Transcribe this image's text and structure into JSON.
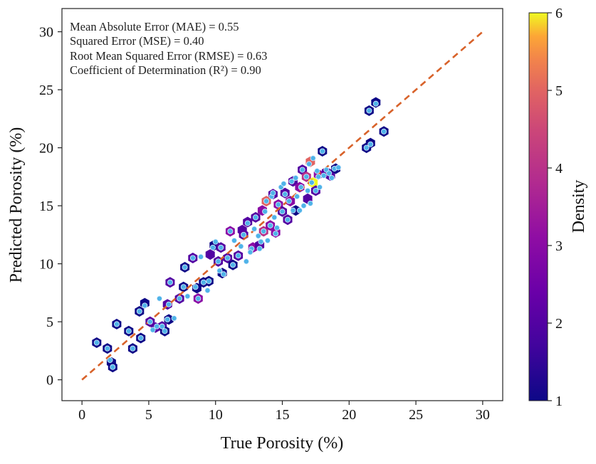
{
  "chart_data": {
    "type": "scatter",
    "title": "",
    "xlabel": "True Porosity (%)",
    "ylabel": "Predicted Porosity (%)",
    "xlim": [
      -1.5,
      31.5
    ],
    "ylim": [
      -1.8,
      32
    ],
    "xticks": [
      0,
      5,
      10,
      15,
      20,
      25,
      30
    ],
    "yticks": [
      0,
      5,
      10,
      15,
      20,
      25,
      30
    ],
    "grid": false,
    "reference_line": {
      "from": [
        0,
        0
      ],
      "to": [
        30,
        30
      ],
      "style": "dashed",
      "color": "#d8622a"
    },
    "metrics": [
      "Mean Absolute Error (MAE) = 0.55",
      "Squared Error (MSE) = 0.40",
      "Root Mean Squared Error (RMSE) = 0.63",
      "Coefficient of Determination (R²) = 0.90"
    ],
    "colorbar": {
      "label": "Density",
      "range": [
        1,
        6
      ],
      "ticks": [
        1,
        2,
        3,
        4,
        5,
        6
      ],
      "colormap": "plasma"
    },
    "point_color": "#4fb3e8",
    "points": [
      [
        1.1,
        3.2
      ],
      [
        1.9,
        2.7
      ],
      [
        2.1,
        1.7
      ],
      [
        2.3,
        1.1
      ],
      [
        2.6,
        4.8
      ],
      [
        3.5,
        4.2
      ],
      [
        3.8,
        2.7
      ],
      [
        4.4,
        3.6
      ],
      [
        4.3,
        5.9
      ],
      [
        4.7,
        6.4
      ],
      [
        5.1,
        5.0
      ],
      [
        5.3,
        4.3
      ],
      [
        5.6,
        4.6
      ],
      [
        5.8,
        7.0
      ],
      [
        6.0,
        4.6
      ],
      [
        6.2,
        4.2
      ],
      [
        6.4,
        5.2
      ],
      [
        6.5,
        6.5
      ],
      [
        6.6,
        8.4
      ],
      [
        6.9,
        5.3
      ],
      [
        7.3,
        7.0
      ],
      [
        7.6,
        8.0
      ],
      [
        7.7,
        9.7
      ],
      [
        7.9,
        7.2
      ],
      [
        8.3,
        10.5
      ],
      [
        8.5,
        8.0
      ],
      [
        8.7,
        7.0
      ],
      [
        8.9,
        10.6
      ],
      [
        9.1,
        8.4
      ],
      [
        9.5,
        8.5
      ],
      [
        9.4,
        7.7
      ],
      [
        9.8,
        11.4
      ],
      [
        10.0,
        11.9
      ],
      [
        10.2,
        10.2
      ],
      [
        10.3,
        9.4
      ],
      [
        10.6,
        9.1
      ],
      [
        10.4,
        11.4
      ],
      [
        10.9,
        10.5
      ],
      [
        11.1,
        12.8
      ],
      [
        11.3,
        9.9
      ],
      [
        11.4,
        12.0
      ],
      [
        11.7,
        10.7
      ],
      [
        11.9,
        11.5
      ],
      [
        12.1,
        12.5
      ],
      [
        12.3,
        10.2
      ],
      [
        12.4,
        13.5
      ],
      [
        12.7,
        11.3
      ],
      [
        12.9,
        13.0
      ],
      [
        13.0,
        14.0
      ],
      [
        13.2,
        12.4
      ],
      [
        13.3,
        11.3
      ],
      [
        13.4,
        11.9
      ],
      [
        13.6,
        12.8
      ],
      [
        13.7,
        14.5
      ],
      [
        13.8,
        15.4
      ],
      [
        13.9,
        12.0
      ],
      [
        14.1,
        13.3
      ],
      [
        14.2,
        15.8
      ],
      [
        14.4,
        14.0
      ],
      [
        14.5,
        12.6
      ],
      [
        14.6,
        13.1
      ],
      [
        14.7,
        15.1
      ],
      [
        14.9,
        16.6
      ],
      [
        15.0,
        14.5
      ],
      [
        15.2,
        16.0
      ],
      [
        15.4,
        13.8
      ],
      [
        15.5,
        15.4
      ],
      [
        15.7,
        17.1
      ],
      [
        15.8,
        14.6
      ],
      [
        16.0,
        17.4
      ],
      [
        16.1,
        15.8
      ],
      [
        16.3,
        14.6
      ],
      [
        16.4,
        16.6
      ],
      [
        16.5,
        18.1
      ],
      [
        16.6,
        15.0
      ],
      [
        16.8,
        17.5
      ],
      [
        16.9,
        16.3
      ],
      [
        17.0,
        18.6
      ],
      [
        17.1,
        15.2
      ],
      [
        17.2,
        17.0
      ],
      [
        17.3,
        19.1
      ],
      [
        17.5,
        16.3
      ],
      [
        17.6,
        18.0
      ],
      [
        17.7,
        17.5
      ],
      [
        17.8,
        16.6
      ],
      [
        18.0,
        19.7
      ],
      [
        18.1,
        17.6
      ],
      [
        18.3,
        18.1
      ],
      [
        18.5,
        17.8
      ],
      [
        18.7,
        17.4
      ],
      [
        18.9,
        18.2
      ],
      [
        19.2,
        18.3
      ],
      [
        21.3,
        20.0
      ],
      [
        21.6,
        20.3
      ],
      [
        21.5,
        23.2
      ],
      [
        22.0,
        23.8
      ],
      [
        22.6,
        21.4
      ],
      [
        15.1,
        16.9
      ],
      [
        14.3,
        16.1
      ],
      [
        12.6,
        11.0
      ]
    ],
    "density_cells": [
      [
        1.1,
        3.2,
        1
      ],
      [
        1.9,
        2.7,
        1
      ],
      [
        2.2,
        1.5,
        1
      ],
      [
        2.3,
        1.1,
        1
      ],
      [
        2.6,
        4.8,
        1
      ],
      [
        3.5,
        4.2,
        1
      ],
      [
        3.8,
        2.7,
        1
      ],
      [
        4.4,
        3.6,
        1
      ],
      [
        4.3,
        5.9,
        1
      ],
      [
        4.7,
        6.6,
        1
      ],
      [
        5.1,
        5.0,
        2
      ],
      [
        5.5,
        4.5,
        2
      ],
      [
        6.0,
        4.6,
        2
      ],
      [
        6.2,
        4.2,
        1
      ],
      [
        6.5,
        5.2,
        1
      ],
      [
        6.4,
        6.5,
        2
      ],
      [
        6.6,
        8.4,
        2
      ],
      [
        7.3,
        7.0,
        2
      ],
      [
        7.6,
        8.0,
        1
      ],
      [
        7.7,
        9.7,
        1
      ],
      [
        8.3,
        10.5,
        2
      ],
      [
        8.6,
        7.9,
        1
      ],
      [
        8.7,
        7.0,
        3
      ],
      [
        9.1,
        8.4,
        1
      ],
      [
        9.5,
        8.5,
        1
      ],
      [
        9.9,
        11.6,
        1
      ],
      [
        10.2,
        10.2,
        2
      ],
      [
        10.5,
        9.2,
        1
      ],
      [
        10.4,
        11.4,
        2
      ],
      [
        10.9,
        10.5,
        2
      ],
      [
        11.1,
        12.8,
        3
      ],
      [
        11.3,
        9.9,
        1
      ],
      [
        11.7,
        10.7,
        2
      ],
      [
        12.1,
        12.5,
        2
      ],
      [
        12.4,
        13.6,
        2
      ],
      [
        12.8,
        11.4,
        3
      ],
      [
        13.0,
        14.0,
        2
      ],
      [
        13.3,
        11.6,
        2
      ],
      [
        13.6,
        12.8,
        4
      ],
      [
        13.8,
        15.4,
        5
      ],
      [
        14.1,
        13.3,
        3
      ],
      [
        14.3,
        16.0,
        2
      ],
      [
        14.5,
        12.7,
        3
      ],
      [
        14.7,
        15.1,
        3
      ],
      [
        15.0,
        14.5,
        2
      ],
      [
        15.2,
        16.1,
        2
      ],
      [
        15.4,
        13.8,
        2
      ],
      [
        15.6,
        15.4,
        3
      ],
      [
        15.8,
        17.1,
        2
      ],
      [
        16.0,
        14.6,
        1
      ],
      [
        16.3,
        16.6,
        3
      ],
      [
        16.5,
        18.1,
        2
      ],
      [
        16.8,
        17.5,
        4
      ],
      [
        16.9,
        15.6,
        2
      ],
      [
        17.1,
        18.8,
        5
      ],
      [
        17.3,
        17.0,
        6
      ],
      [
        17.5,
        16.3,
        2
      ],
      [
        17.7,
        17.7,
        3
      ],
      [
        18.0,
        19.7,
        1
      ],
      [
        18.3,
        17.9,
        2
      ],
      [
        18.6,
        17.6,
        2
      ],
      [
        19.0,
        18.2,
        1
      ],
      [
        21.3,
        20.0,
        1
      ],
      [
        21.6,
        20.4,
        1
      ],
      [
        21.5,
        23.2,
        1
      ],
      [
        22.0,
        23.9,
        1
      ],
      [
        22.6,
        21.4,
        1
      ],
      [
        13.5,
        14.6,
        3
      ],
      [
        12.0,
        12.9,
        2
      ],
      [
        9.6,
        10.8,
        2
      ]
    ]
  }
}
